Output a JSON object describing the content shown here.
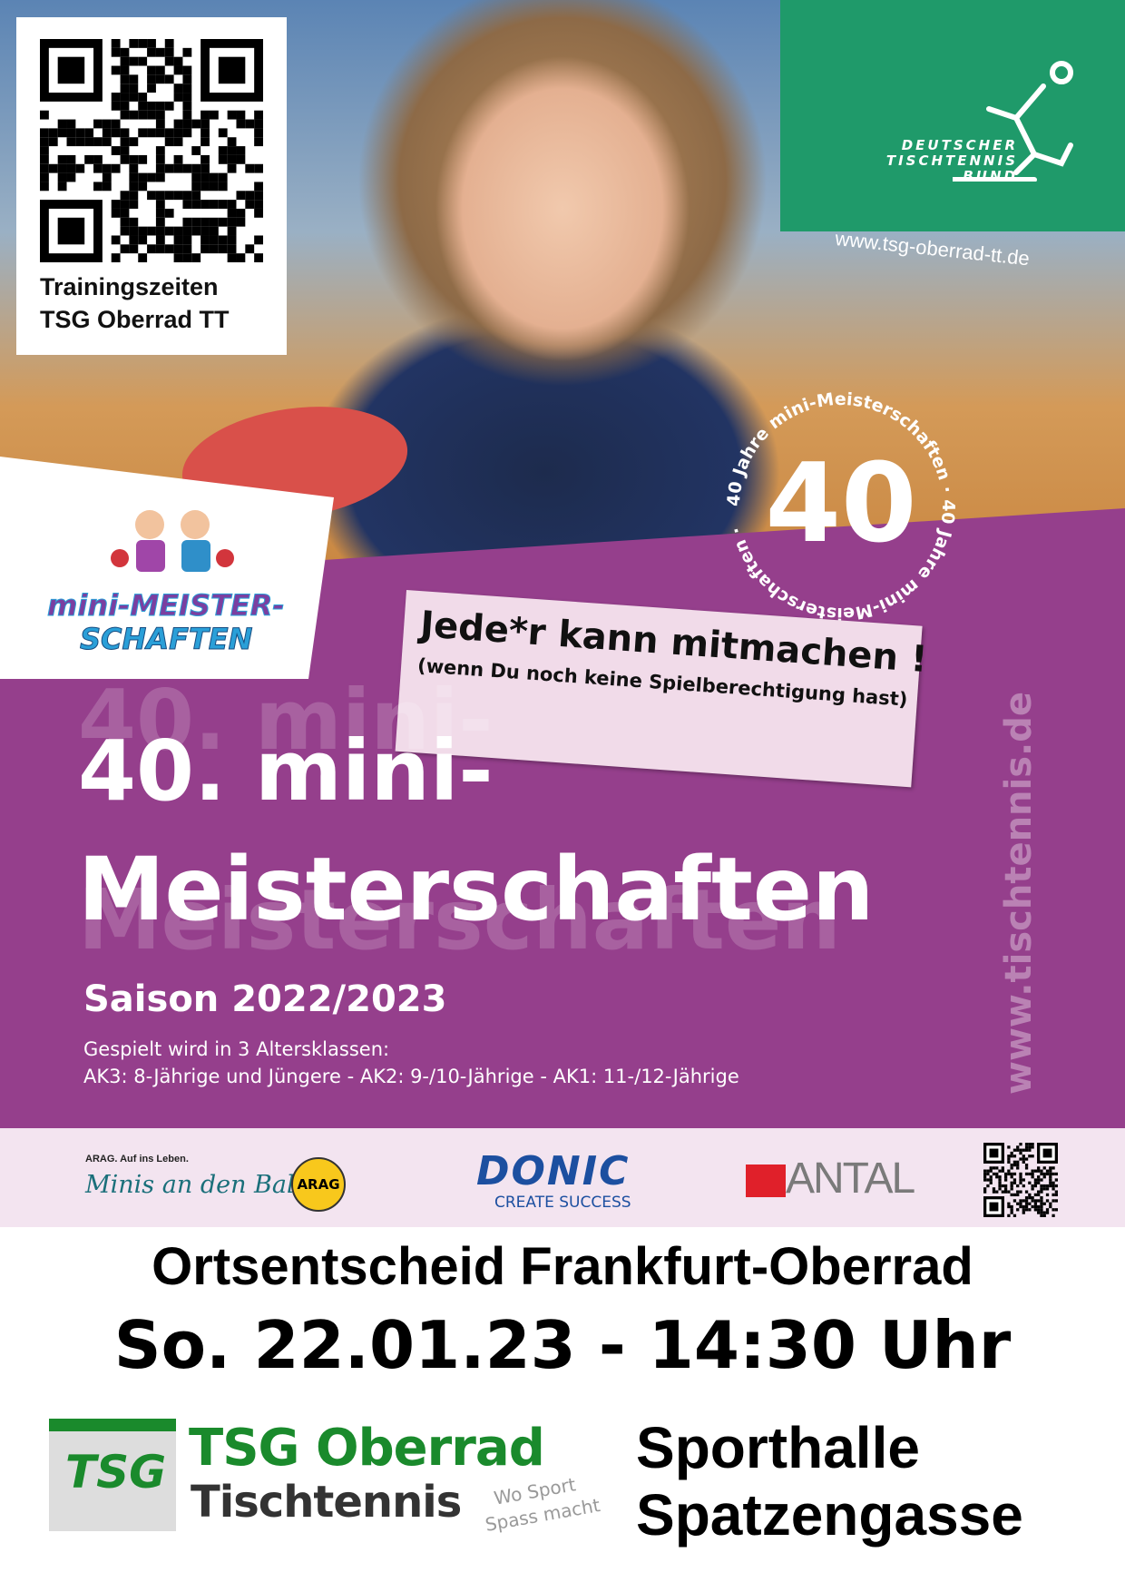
{
  "qr_box": {
    "line1": "Trainingszeiten",
    "line2": "TSG Oberrad TT"
  },
  "dttb": {
    "line1": "DEUTSCHER",
    "line2": "TISCHTENNIS",
    "line3": "BUND",
    "icon": "table-tennis-player-icon"
  },
  "club_url": "www.tsg-oberrad-tt.de",
  "mini_logo": {
    "line1": "mini-MEISTER-",
    "line2": "SCHAFTEN"
  },
  "anniversary": {
    "number": "40",
    "ring_text": "40 Jahre mini-Meisterschaften · 40 Jahre mini-Meisterschaften ·"
  },
  "callout": {
    "line1": "Jede*r kann mitmachen !",
    "line2": "(wenn Du noch keine Spielberechtigung hast)"
  },
  "title": {
    "line1": "40. mini-",
    "line2": "Meisterschaften"
  },
  "season": "Saison 2022/2023",
  "age_intro": "Gespielt wird in 3 Altersklassen:",
  "age_classes": "AK3: 8-Jährige und Jüngere  -  AK2: 9-/10-Jährige  -  AK1:  11-/12-Jährige",
  "side_url": "www.tischtennis.de",
  "sponsors": {
    "arag_tag": "ARAG. Auf ins Leben.",
    "arag_slogan": "Minis an den Ball",
    "arag_badge": "ARAG",
    "donic": "DONIC",
    "donic_tag": "CREATE SUCCESS",
    "antal": "ANTAL"
  },
  "event": {
    "location_title": "Ortsentscheid Frankfurt-Oberrad",
    "datetime": "So. 22.01.23 - 14:30 Uhr",
    "venue_line1": "Sporthalle",
    "venue_line2": "Spatzengasse"
  },
  "club_logo": {
    "name": "TSG Oberrad",
    "dept": "Tischtennis",
    "slogan1": "Wo Sport",
    "slogan2": "Spass macht",
    "badge": "TSG"
  },
  "colors": {
    "purple": "#953f8c",
    "green": "#1f9a6a",
    "club_green": "#1a8a2c",
    "pink": "#f3e4f0"
  }
}
